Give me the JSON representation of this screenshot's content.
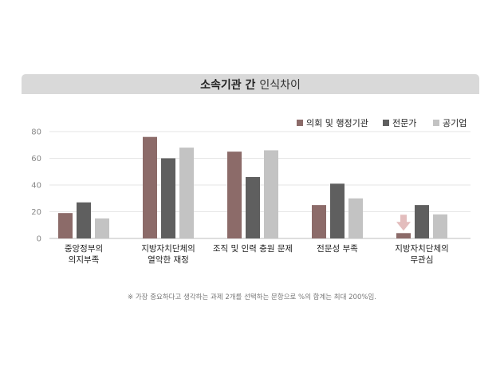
{
  "title": {
    "bold": "소속기관 간",
    "light": "인식차이"
  },
  "footnote": "※ 가장 중요하다고 생각하는 과제 2개를 선택하는 문항으로 %의 합계는 최대 200%임.",
  "chart_data": {
    "type": "bar",
    "title": "소속기관 간 인식차이",
    "categories": [
      [
        "중앙정부의",
        "의지부족"
      ],
      [
        "지방자치단체의",
        "열악한 재정"
      ],
      [
        "조직 및 인력 충원 문제"
      ],
      [
        "전문성 부족"
      ],
      [
        "지방자치단체의",
        "무관심"
      ]
    ],
    "series": [
      {
        "name": "의회 및 행정기관",
        "color": "#8c6b69",
        "values": [
          19,
          76,
          65,
          25,
          4
        ]
      },
      {
        "name": "전문가",
        "color": "#5f5f5f",
        "values": [
          27,
          60,
          46,
          41,
          25
        ]
      },
      {
        "name": "공기업",
        "color": "#c3c3c3",
        "values": [
          15,
          68,
          66,
          30,
          18
        ]
      }
    ],
    "ylim": [
      0,
      80
    ],
    "yticks": [
      0,
      20,
      40,
      60,
      80
    ],
    "grid": true,
    "legend": "top-right",
    "annotation": {
      "category_index": 4,
      "series_index": 0,
      "icon": "down-arrow-icon",
      "color": "#e3bdbd"
    }
  }
}
